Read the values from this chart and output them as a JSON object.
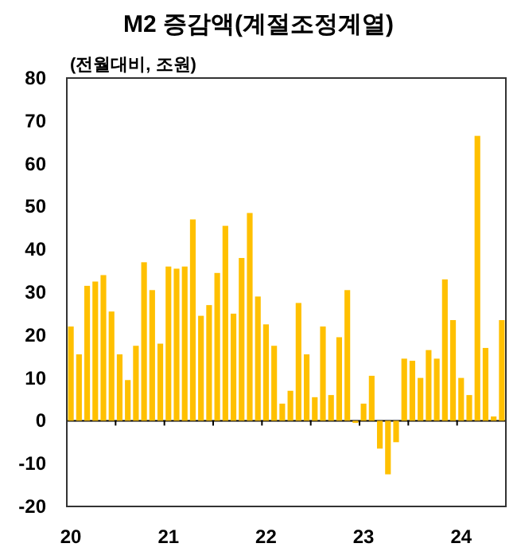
{
  "chart_data": {
    "type": "bar",
    "title": "M2 증감액(계절조정계열)",
    "subtitle": "(전월대비, 조원)",
    "categories": [
      "20",
      null,
      null,
      null,
      null,
      null,
      null,
      null,
      null,
      null,
      null,
      null,
      "21",
      null,
      null,
      null,
      null,
      null,
      null,
      null,
      null,
      null,
      null,
      null,
      "22",
      null,
      null,
      null,
      null,
      null,
      null,
      null,
      null,
      null,
      null,
      null,
      "23",
      null,
      null,
      null,
      null,
      null,
      null,
      null,
      null,
      null,
      null,
      null,
      "24",
      null,
      null,
      null,
      null,
      null
    ],
    "values": [
      22,
      15.5,
      31.5,
      32.5,
      34,
      25.5,
      15.5,
      9.5,
      17.5,
      37,
      30.5,
      18,
      36,
      35.5,
      36,
      47,
      24.5,
      27,
      34.5,
      45.5,
      25,
      38,
      48.5,
      29,
      22.5,
      17.5,
      4,
      7,
      27.5,
      15.5,
      5.5,
      22,
      6,
      19.5,
      30.5,
      -0.5,
      4,
      10.5,
      -6.5,
      -12.5,
      -5,
      14.5,
      14,
      10,
      16.5,
      14.5,
      33,
      23.5,
      10,
      6,
      66.5,
      17,
      1,
      23.5
    ],
    "color": "#ffc000",
    "ylim": [
      -20,
      80
    ],
    "yticks": [
      -20,
      -10,
      0,
      10,
      20,
      30,
      40,
      50,
      60,
      70,
      80
    ]
  }
}
